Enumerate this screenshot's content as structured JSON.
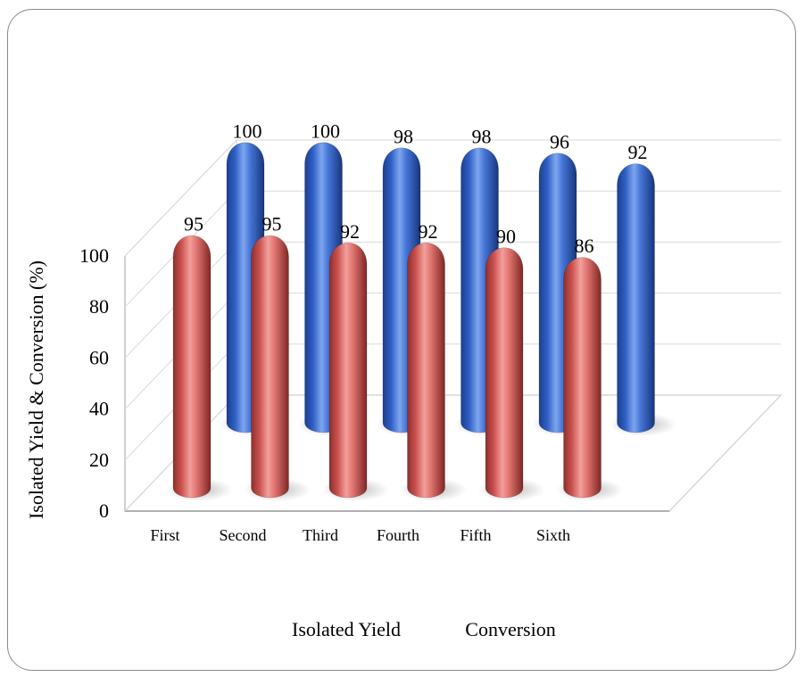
{
  "chart_data": {
    "type": "bar",
    "style": "3d-cylinder",
    "title": "",
    "xlabel": "",
    "ylabel": "Isolated Yield & Conversion (%)",
    "ylim": [
      0,
      100
    ],
    "yticks": [
      0,
      20,
      40,
      60,
      80,
      100
    ],
    "categories": [
      "First",
      "Second",
      "Third",
      "Fourth",
      "Fifth",
      "Sixth"
    ],
    "series": [
      {
        "name": "Isolated Yield",
        "color": "#d9625f",
        "values": [
          95,
          95,
          92,
          92,
          90,
          86
        ]
      },
      {
        "name": "Conversion",
        "color": "#3f6fcf",
        "values": [
          100,
          100,
          98,
          98,
          96,
          92
        ]
      }
    ],
    "grid": true,
    "legend_position": "bottom"
  }
}
